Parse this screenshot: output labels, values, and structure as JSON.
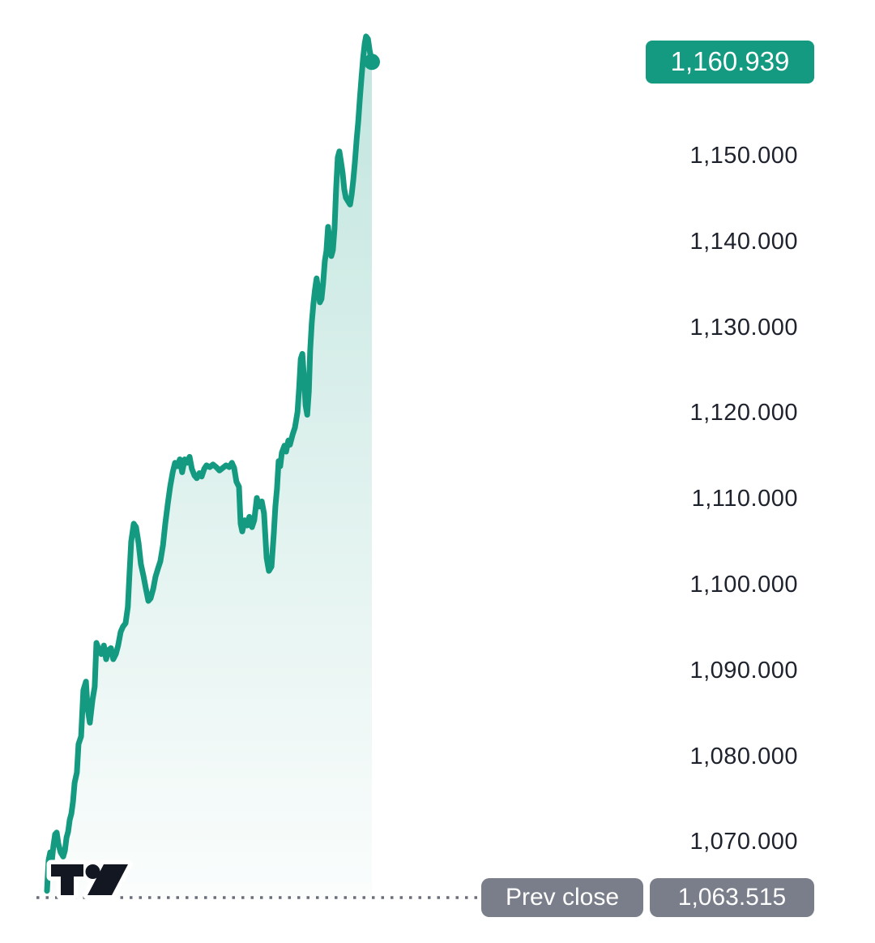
{
  "widget": {
    "type": "mini price chart"
  },
  "colors": {
    "accent_green": "#149a80",
    "badge_gray": "#7a7e8a",
    "label_text": "#1e222d",
    "dotted_line": "#6a6e78",
    "logo": "#131722",
    "fill_top": "rgba(20,154,128,0.26)",
    "fill_bottom": "rgba(20,154,128,0.02)",
    "badge_text": "#ffffff"
  },
  "current_price": {
    "label": "1,160.939",
    "value": 1160.939
  },
  "prev_close": {
    "label": "Prev close",
    "price_label": "1,063.515",
    "value": 1063.515
  },
  "chart_data": {
    "type": "area",
    "title": "",
    "xlabel": "",
    "ylabel": "",
    "grid": false,
    "legend": false,
    "ylim": [
      1062,
      1166
    ],
    "x_axis": {
      "tick_labels": []
    },
    "y_axis": {
      "side": "right",
      "ticks": [
        {
          "label": "1,150.000",
          "value": 1150
        },
        {
          "label": "1,140.000",
          "value": 1140
        },
        {
          "label": "1,130.000",
          "value": 1130
        },
        {
          "label": "1,120.000",
          "value": 1120
        },
        {
          "label": "1,110.000",
          "value": 1110
        },
        {
          "label": "1,100.000",
          "value": 1100
        },
        {
          "label": "1,090.000",
          "value": 1090
        },
        {
          "label": "1,080.000",
          "value": 1080
        },
        {
          "label": "1,070.000",
          "value": 1070
        }
      ]
    },
    "prev_close_line": {
      "style": "dotted",
      "value": 1063.515
    },
    "last_value_marker": {
      "shape": "dot",
      "value": 1160.939
    },
    "series": [
      {
        "name": "price",
        "color": "#149a80",
        "points": [
          [
            0.0,
            1064.3
          ],
          [
            0.002,
            1065.8
          ],
          [
            0.005,
            1067.9
          ],
          [
            0.01,
            1068.8
          ],
          [
            0.015,
            1067.8
          ],
          [
            0.02,
            1069.6
          ],
          [
            0.025,
            1070.9
          ],
          [
            0.03,
            1071.1
          ],
          [
            0.035,
            1069.8
          ],
          [
            0.042,
            1068.8
          ],
          [
            0.05,
            1068.3
          ],
          [
            0.055,
            1069.0
          ],
          [
            0.06,
            1070.5
          ],
          [
            0.065,
            1071.2
          ],
          [
            0.07,
            1072.6
          ],
          [
            0.075,
            1073.3
          ],
          [
            0.08,
            1074.7
          ],
          [
            0.085,
            1076.9
          ],
          [
            0.092,
            1078.1
          ],
          [
            0.097,
            1081.4
          ],
          [
            0.105,
            1082.3
          ],
          [
            0.112,
            1087.7
          ],
          [
            0.12,
            1088.7
          ],
          [
            0.125,
            1085.6
          ],
          [
            0.132,
            1083.9
          ],
          [
            0.14,
            1086.5
          ],
          [
            0.147,
            1088.1
          ],
          [
            0.152,
            1093.2
          ],
          [
            0.16,
            1092.4
          ],
          [
            0.167,
            1091.9
          ],
          [
            0.175,
            1092.9
          ],
          [
            0.182,
            1091.3
          ],
          [
            0.19,
            1092.4
          ],
          [
            0.197,
            1092.6
          ],
          [
            0.204,
            1091.3
          ],
          [
            0.212,
            1091.9
          ],
          [
            0.219,
            1092.9
          ],
          [
            0.227,
            1094.5
          ],
          [
            0.234,
            1095.1
          ],
          [
            0.242,
            1095.5
          ],
          [
            0.249,
            1097.4
          ],
          [
            0.254,
            1101.4
          ],
          [
            0.259,
            1105.0
          ],
          [
            0.267,
            1107.1
          ],
          [
            0.274,
            1106.7
          ],
          [
            0.282,
            1104.8
          ],
          [
            0.289,
            1102.4
          ],
          [
            0.297,
            1101.0
          ],
          [
            0.304,
            1099.6
          ],
          [
            0.312,
            1098.1
          ],
          [
            0.319,
            1098.4
          ],
          [
            0.327,
            1099.5
          ],
          [
            0.334,
            1100.9
          ],
          [
            0.342,
            1101.9
          ],
          [
            0.349,
            1102.7
          ],
          [
            0.357,
            1104.6
          ],
          [
            0.364,
            1107.1
          ],
          [
            0.372,
            1109.5
          ],
          [
            0.379,
            1111.4
          ],
          [
            0.387,
            1113.1
          ],
          [
            0.394,
            1114.2
          ],
          [
            0.401,
            1113.8
          ],
          [
            0.409,
            1114.6
          ],
          [
            0.416,
            1113.1
          ],
          [
            0.424,
            1114.6
          ],
          [
            0.431,
            1114.2
          ],
          [
            0.439,
            1114.9
          ],
          [
            0.446,
            1113.5
          ],
          [
            0.454,
            1112.7
          ],
          [
            0.461,
            1112.4
          ],
          [
            0.469,
            1113.0
          ],
          [
            0.476,
            1112.6
          ],
          [
            0.484,
            1113.5
          ],
          [
            0.491,
            1113.9
          ],
          [
            0.501,
            1113.7
          ],
          [
            0.511,
            1114.0
          ],
          [
            0.521,
            1113.7
          ],
          [
            0.531,
            1113.3
          ],
          [
            0.541,
            1113.6
          ],
          [
            0.551,
            1113.9
          ],
          [
            0.561,
            1113.7
          ],
          [
            0.569,
            1114.2
          ],
          [
            0.576,
            1113.6
          ],
          [
            0.583,
            1112.0
          ],
          [
            0.591,
            1111.4
          ],
          [
            0.596,
            1107.1
          ],
          [
            0.601,
            1106.2
          ],
          [
            0.609,
            1107.5
          ],
          [
            0.616,
            1106.9
          ],
          [
            0.623,
            1107.9
          ],
          [
            0.631,
            1106.7
          ],
          [
            0.638,
            1107.5
          ],
          [
            0.646,
            1110.1
          ],
          [
            0.653,
            1109.1
          ],
          [
            0.661,
            1109.7
          ],
          [
            0.668,
            1108.3
          ],
          [
            0.676,
            1103.1
          ],
          [
            0.683,
            1101.6
          ],
          [
            0.691,
            1102.1
          ],
          [
            0.698,
            1105.9
          ],
          [
            0.703,
            1109.1
          ],
          [
            0.708,
            1111.2
          ],
          [
            0.713,
            1114.4
          ],
          [
            0.718,
            1113.8
          ],
          [
            0.723,
            1115.4
          ],
          [
            0.731,
            1116.2
          ],
          [
            0.736,
            1115.5
          ],
          [
            0.743,
            1116.8
          ],
          [
            0.748,
            1116.3
          ],
          [
            0.756,
            1117.5
          ],
          [
            0.763,
            1118.3
          ],
          [
            0.771,
            1120.1
          ],
          [
            0.776,
            1122.9
          ],
          [
            0.781,
            1126.3
          ],
          [
            0.786,
            1126.9
          ],
          [
            0.791,
            1124.1
          ],
          [
            0.796,
            1120.9
          ],
          [
            0.801,
            1119.8
          ],
          [
            0.806,
            1122.5
          ],
          [
            0.81,
            1127.2
          ],
          [
            0.815,
            1130.5
          ],
          [
            0.82,
            1132.7
          ],
          [
            0.825,
            1134.4
          ],
          [
            0.83,
            1135.7
          ],
          [
            0.835,
            1134.3
          ],
          [
            0.84,
            1132.9
          ],
          [
            0.845,
            1133.3
          ],
          [
            0.85,
            1135.1
          ],
          [
            0.855,
            1137.7
          ],
          [
            0.86,
            1138.9
          ],
          [
            0.865,
            1141.7
          ],
          [
            0.87,
            1140.0
          ],
          [
            0.875,
            1138.3
          ],
          [
            0.88,
            1139.0
          ],
          [
            0.885,
            1141.5
          ],
          [
            0.89,
            1146.2
          ],
          [
            0.895,
            1149.8
          ],
          [
            0.9,
            1150.5
          ],
          [
            0.905,
            1149.3
          ],
          [
            0.91,
            1148.0
          ],
          [
            0.915,
            1146.1
          ],
          [
            0.92,
            1145.1
          ],
          [
            0.928,
            1144.6
          ],
          [
            0.933,
            1144.3
          ],
          [
            0.938,
            1145.5
          ],
          [
            0.943,
            1147.2
          ],
          [
            0.948,
            1149.3
          ],
          [
            0.953,
            1151.9
          ],
          [
            0.958,
            1154.0
          ],
          [
            0.963,
            1156.7
          ],
          [
            0.968,
            1159.1
          ],
          [
            0.973,
            1161.4
          ],
          [
            0.978,
            1163.1
          ],
          [
            0.982,
            1163.9
          ],
          [
            0.988,
            1163.6
          ],
          [
            0.993,
            1162.3
          ],
          [
            1.0,
            1160.939
          ]
        ]
      }
    ]
  }
}
